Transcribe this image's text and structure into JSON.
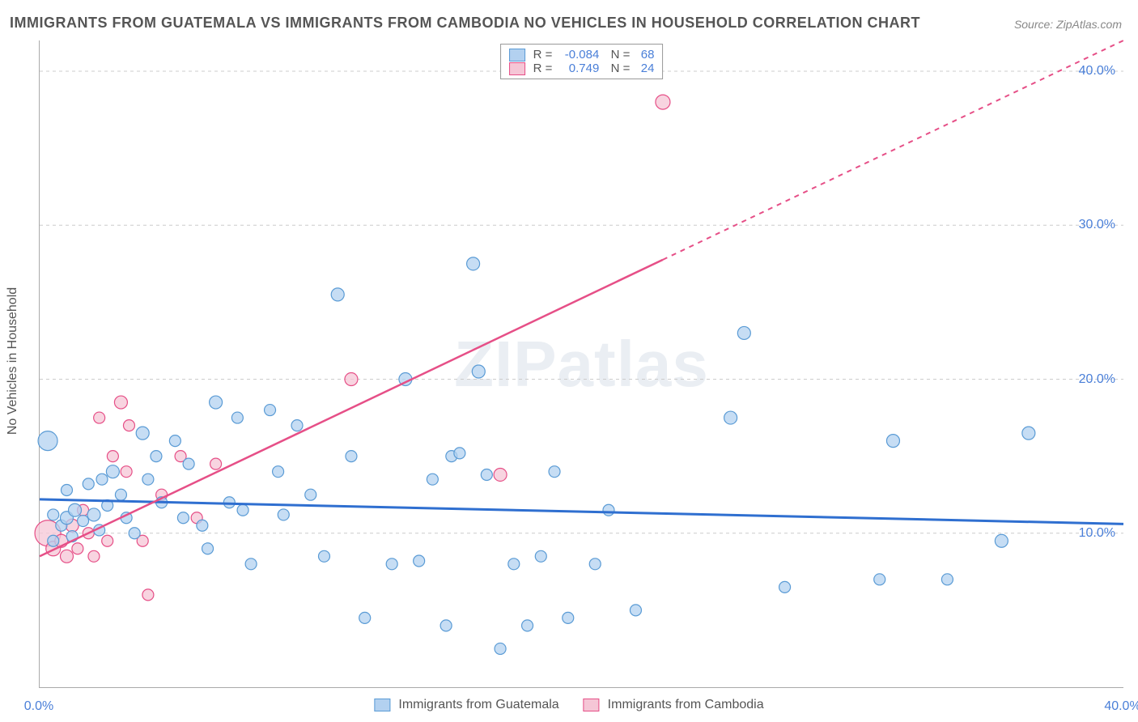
{
  "title": "IMMIGRANTS FROM GUATEMALA VS IMMIGRANTS FROM CAMBODIA NO VEHICLES IN HOUSEHOLD CORRELATION CHART",
  "source": "Source: ZipAtlas.com",
  "ylabel": "No Vehicles in Household",
  "watermark_a": "ZIP",
  "watermark_b": "atlas",
  "chart": {
    "type": "scatter",
    "xlim": [
      0,
      40
    ],
    "ylim": [
      0,
      42
    ],
    "xticks": [
      {
        "v": 0,
        "label": "0.0%"
      },
      {
        "v": 40,
        "label": "40.0%"
      }
    ],
    "yticks": [
      {
        "v": 10,
        "label": "10.0%"
      },
      {
        "v": 20,
        "label": "20.0%"
      },
      {
        "v": 30,
        "label": "30.0%"
      },
      {
        "v": 40,
        "label": "40.0%"
      }
    ],
    "grid_color": "#cccccc",
    "background_color": "#ffffff",
    "axis_label_color": "#4a7fd8",
    "series": [
      {
        "name": "Immigrants from Guatemala",
        "key": "guatemala",
        "fill": "#b3d1f0",
        "stroke": "#5a9bd5",
        "line_color": "#2f6fd0",
        "R": "-0.084",
        "N": "68",
        "trend": {
          "x1": 0,
          "y1": 12.2,
          "x2": 40,
          "y2": 10.6
        },
        "points": [
          {
            "x": 0.3,
            "y": 16.0,
            "r": 12
          },
          {
            "x": 0.5,
            "y": 11.2,
            "r": 7
          },
          {
            "x": 0.8,
            "y": 10.5,
            "r": 7
          },
          {
            "x": 1.0,
            "y": 11.0,
            "r": 8
          },
          {
            "x": 1.2,
            "y": 9.8,
            "r": 7
          },
          {
            "x": 1.3,
            "y": 11.5,
            "r": 8
          },
          {
            "x": 1.6,
            "y": 10.8,
            "r": 7
          },
          {
            "x": 1.8,
            "y": 13.2,
            "r": 7
          },
          {
            "x": 2.0,
            "y": 11.2,
            "r": 8
          },
          {
            "x": 2.2,
            "y": 10.2,
            "r": 7
          },
          {
            "x": 2.5,
            "y": 11.8,
            "r": 7
          },
          {
            "x": 2.7,
            "y": 14.0,
            "r": 8
          },
          {
            "x": 3.0,
            "y": 12.5,
            "r": 7
          },
          {
            "x": 3.2,
            "y": 11.0,
            "r": 7
          },
          {
            "x": 3.5,
            "y": 10.0,
            "r": 7
          },
          {
            "x": 3.8,
            "y": 16.5,
            "r": 8
          },
          {
            "x": 4.0,
            "y": 13.5,
            "r": 7
          },
          {
            "x": 4.3,
            "y": 15.0,
            "r": 7
          },
          {
            "x": 4.5,
            "y": 12.0,
            "r": 7
          },
          {
            "x": 5.0,
            "y": 16.0,
            "r": 7
          },
          {
            "x": 5.3,
            "y": 11.0,
            "r": 7
          },
          {
            "x": 5.5,
            "y": 14.5,
            "r": 7
          },
          {
            "x": 6.0,
            "y": 10.5,
            "r": 7
          },
          {
            "x": 6.5,
            "y": 18.5,
            "r": 8
          },
          {
            "x": 7.0,
            "y": 12.0,
            "r": 7
          },
          {
            "x": 7.3,
            "y": 17.5,
            "r": 7
          },
          {
            "x": 7.5,
            "y": 11.5,
            "r": 7
          },
          {
            "x": 7.8,
            "y": 8.0,
            "r": 7
          },
          {
            "x": 8.5,
            "y": 18.0,
            "r": 7
          },
          {
            "x": 8.8,
            "y": 14.0,
            "r": 7
          },
          {
            "x": 9.0,
            "y": 11.2,
            "r": 7
          },
          {
            "x": 9.5,
            "y": 17.0,
            "r": 7
          },
          {
            "x": 10.0,
            "y": 12.5,
            "r": 7
          },
          {
            "x": 10.5,
            "y": 8.5,
            "r": 7
          },
          {
            "x": 11.0,
            "y": 25.5,
            "r": 8
          },
          {
            "x": 11.5,
            "y": 15.0,
            "r": 7
          },
          {
            "x": 12.0,
            "y": 4.5,
            "r": 7
          },
          {
            "x": 13.0,
            "y": 8.0,
            "r": 7
          },
          {
            "x": 13.5,
            "y": 20.0,
            "r": 8
          },
          {
            "x": 14.0,
            "y": 8.2,
            "r": 7
          },
          {
            "x": 14.5,
            "y": 13.5,
            "r": 7
          },
          {
            "x": 15.0,
            "y": 4.0,
            "r": 7
          },
          {
            "x": 15.2,
            "y": 15.0,
            "r": 7
          },
          {
            "x": 15.5,
            "y": 15.2,
            "r": 7
          },
          {
            "x": 16.0,
            "y": 27.5,
            "r": 8
          },
          {
            "x": 16.2,
            "y": 20.5,
            "r": 8
          },
          {
            "x": 16.5,
            "y": 13.8,
            "r": 7
          },
          {
            "x": 17.0,
            "y": 2.5,
            "r": 7
          },
          {
            "x": 17.5,
            "y": 8.0,
            "r": 7
          },
          {
            "x": 18.0,
            "y": 4.0,
            "r": 7
          },
          {
            "x": 18.5,
            "y": 8.5,
            "r": 7
          },
          {
            "x": 19.0,
            "y": 14.0,
            "r": 7
          },
          {
            "x": 19.5,
            "y": 4.5,
            "r": 7
          },
          {
            "x": 20.5,
            "y": 8.0,
            "r": 7
          },
          {
            "x": 21.0,
            "y": 11.5,
            "r": 7
          },
          {
            "x": 22.0,
            "y": 5.0,
            "r": 7
          },
          {
            "x": 25.5,
            "y": 17.5,
            "r": 8
          },
          {
            "x": 26.0,
            "y": 23.0,
            "r": 8
          },
          {
            "x": 27.5,
            "y": 6.5,
            "r": 7
          },
          {
            "x": 31.0,
            "y": 7.0,
            "r": 7
          },
          {
            "x": 31.5,
            "y": 16.0,
            "r": 8
          },
          {
            "x": 33.5,
            "y": 7.0,
            "r": 7
          },
          {
            "x": 35.5,
            "y": 9.5,
            "r": 8
          },
          {
            "x": 36.5,
            "y": 16.5,
            "r": 8
          },
          {
            "x": 0.5,
            "y": 9.5,
            "r": 7
          },
          {
            "x": 1.0,
            "y": 12.8,
            "r": 7
          },
          {
            "x": 2.3,
            "y": 13.5,
            "r": 7
          },
          {
            "x": 6.2,
            "y": 9.0,
            "r": 7
          }
        ]
      },
      {
        "name": "Immigrants from Cambodia",
        "key": "cambodia",
        "fill": "#f5c6d6",
        "stroke": "#e64f87",
        "line_color": "#e64f87",
        "R": "0.749",
        "N": "24",
        "trend": {
          "x1": 0,
          "y1": 8.5,
          "x2": 40,
          "y2": 42.0
        },
        "trend_solid_until_x": 23,
        "points": [
          {
            "x": 0.3,
            "y": 10.0,
            "r": 16
          },
          {
            "x": 0.5,
            "y": 9.0,
            "r": 9
          },
          {
            "x": 0.8,
            "y": 9.5,
            "r": 8
          },
          {
            "x": 1.0,
            "y": 8.5,
            "r": 8
          },
          {
            "x": 1.2,
            "y": 10.5,
            "r": 8
          },
          {
            "x": 1.4,
            "y": 9.0,
            "r": 7
          },
          {
            "x": 1.6,
            "y": 11.5,
            "r": 7
          },
          {
            "x": 1.8,
            "y": 10.0,
            "r": 7
          },
          {
            "x": 2.0,
            "y": 8.5,
            "r": 7
          },
          {
            "x": 2.2,
            "y": 17.5,
            "r": 7
          },
          {
            "x": 2.5,
            "y": 9.5,
            "r": 7
          },
          {
            "x": 2.7,
            "y": 15.0,
            "r": 7
          },
          {
            "x": 3.0,
            "y": 18.5,
            "r": 8
          },
          {
            "x": 3.2,
            "y": 14.0,
            "r": 7
          },
          {
            "x": 3.3,
            "y": 17.0,
            "r": 7
          },
          {
            "x": 3.8,
            "y": 9.5,
            "r": 7
          },
          {
            "x": 4.0,
            "y": 6.0,
            "r": 7
          },
          {
            "x": 4.5,
            "y": 12.5,
            "r": 7
          },
          {
            "x": 5.2,
            "y": 15.0,
            "r": 7
          },
          {
            "x": 5.8,
            "y": 11.0,
            "r": 7
          },
          {
            "x": 6.5,
            "y": 14.5,
            "r": 7
          },
          {
            "x": 11.5,
            "y": 20.0,
            "r": 8
          },
          {
            "x": 17.0,
            "y": 13.8,
            "r": 8
          },
          {
            "x": 23.0,
            "y": 38.0,
            "r": 9
          }
        ]
      }
    ]
  }
}
